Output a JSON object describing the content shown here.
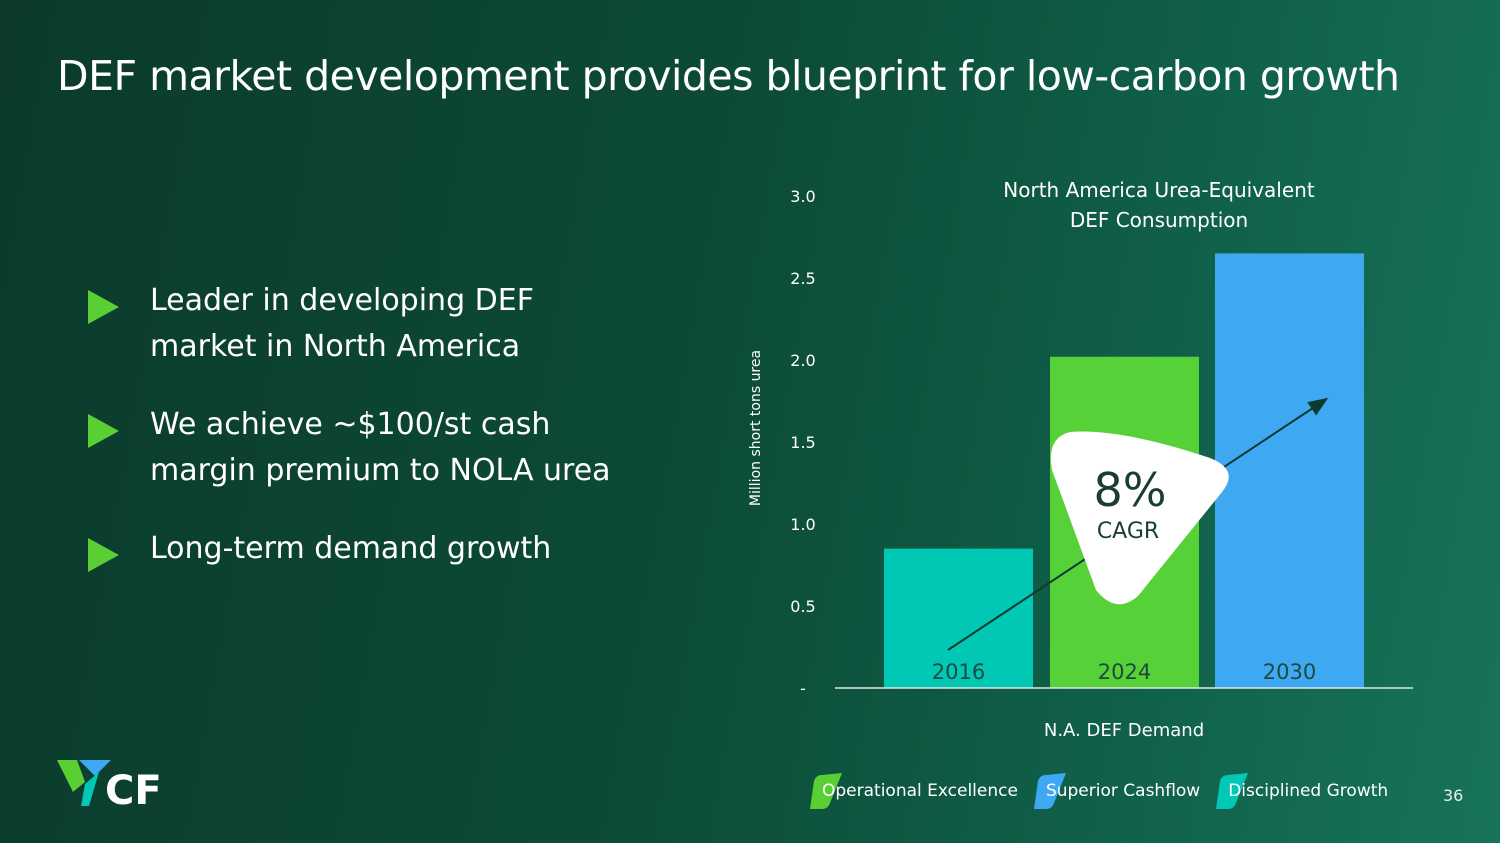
{
  "title": "DEF market development provides blueprint for low-carbon growth",
  "bullets": [
    {
      "lines": [
        "Leader in developing DEF",
        "market in North America"
      ]
    },
    {
      "lines": [
        "We achieve ~$100/st cash",
        "margin premium to NOLA urea"
      ]
    },
    {
      "lines": [
        "Long-term demand growth"
      ]
    }
  ],
  "chart_data": {
    "type": "bar",
    "title": [
      "North America Urea-Equivalent",
      "DEF Consumption"
    ],
    "categories": [
      "2016",
      "2024",
      "2030"
    ],
    "values": [
      0.85,
      2.02,
      2.65
    ],
    "colors": [
      "#00c8b5",
      "#57d138",
      "#3ea9f2"
    ],
    "ylabel": "Million short tons urea",
    "xlabel": "N.A. DEF Demand",
    "ylim": [
      0,
      3.0
    ],
    "yticks": [
      "-",
      "0.5",
      "1.0",
      "1.5",
      "2.0",
      "2.5",
      "3.0"
    ],
    "ytick_values": [
      0,
      0.5,
      1.0,
      1.5,
      2.0,
      2.5,
      3.0
    ],
    "annotation": {
      "value": "8%",
      "label": "CAGR"
    }
  },
  "footer": {
    "pillars": [
      {
        "label": "Operational Excellence",
        "color": "#59cf33"
      },
      {
        "label": "Superior Cashflow",
        "color": "#3ea9f2"
      },
      {
        "label": "Disciplined Growth",
        "color": "#00c8b5"
      }
    ],
    "page_number": "36"
  },
  "logo": {
    "text": "CF"
  }
}
